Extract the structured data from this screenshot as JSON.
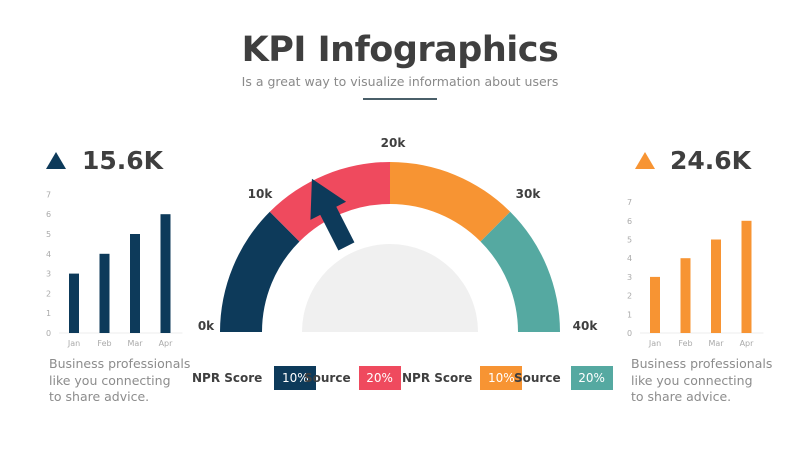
{
  "header": {
    "title": "KPI Infographics",
    "subtitle": "Is a great way to visualize information about users"
  },
  "colors": {
    "navy": "#0d3a5a",
    "red": "#ef4a5e",
    "orange": "#f79433",
    "teal": "#55a9a1",
    "gray": "#f0f0f0"
  },
  "left_panel": {
    "kpi_value": "15.6K",
    "description_lines": [
      "Business professionals",
      "like you connecting",
      "to share advice."
    ]
  },
  "right_panel": {
    "kpi_value": "24.6K",
    "description_lines": [
      "Business professionals",
      "like you connecting",
      "to share advice."
    ]
  },
  "gauge": {
    "labels": [
      "0k",
      "10k",
      "20k",
      "30k",
      "40k"
    ]
  },
  "legend": [
    {
      "label": "NPR Score",
      "value": "10%",
      "color": "#0d3a5a"
    },
    {
      "label": "Source",
      "value": "20%",
      "color": "#ef4a5e"
    },
    {
      "label": "NPR Score",
      "value": "10%",
      "color": "#f79433"
    },
    {
      "label": "Source",
      "value": "20%",
      "color": "#55a9a1"
    }
  ],
  "chart_data": [
    {
      "type": "bar",
      "title": "15.6K",
      "categories": [
        "Jan",
        "Feb",
        "Mar",
        "Apr"
      ],
      "values": [
        3,
        4,
        5,
        6
      ],
      "yticks": [
        "0",
        "1",
        "2",
        "3",
        "4",
        "5",
        "6",
        "7"
      ],
      "ylim": [
        0,
        7
      ],
      "color": "#0d3a5a",
      "grid": false
    },
    {
      "type": "bar",
      "title": "24.6K",
      "categories": [
        "Jan",
        "Feb",
        "Mar",
        "Apr"
      ],
      "values": [
        3,
        4,
        5,
        6
      ],
      "yticks": [
        "0",
        "1",
        "2",
        "3",
        "4",
        "5",
        "6",
        "7"
      ],
      "ylim": [
        0,
        7
      ],
      "color": "#f79433",
      "grid": false
    },
    {
      "type": "gauge",
      "range": [
        0,
        40
      ],
      "unit": "k",
      "tick_labels": [
        "0k",
        "10k",
        "20k",
        "30k",
        "40k"
      ],
      "segments": [
        {
          "from": 0,
          "to": 10,
          "color": "#0d3a5a"
        },
        {
          "from": 10,
          "to": 20,
          "color": "#ef4a5e"
        },
        {
          "from": 20,
          "to": 30,
          "color": "#f79433"
        },
        {
          "from": 30,
          "to": 40,
          "color": "#55a9a1"
        }
      ],
      "needle_value": 14
    }
  ]
}
